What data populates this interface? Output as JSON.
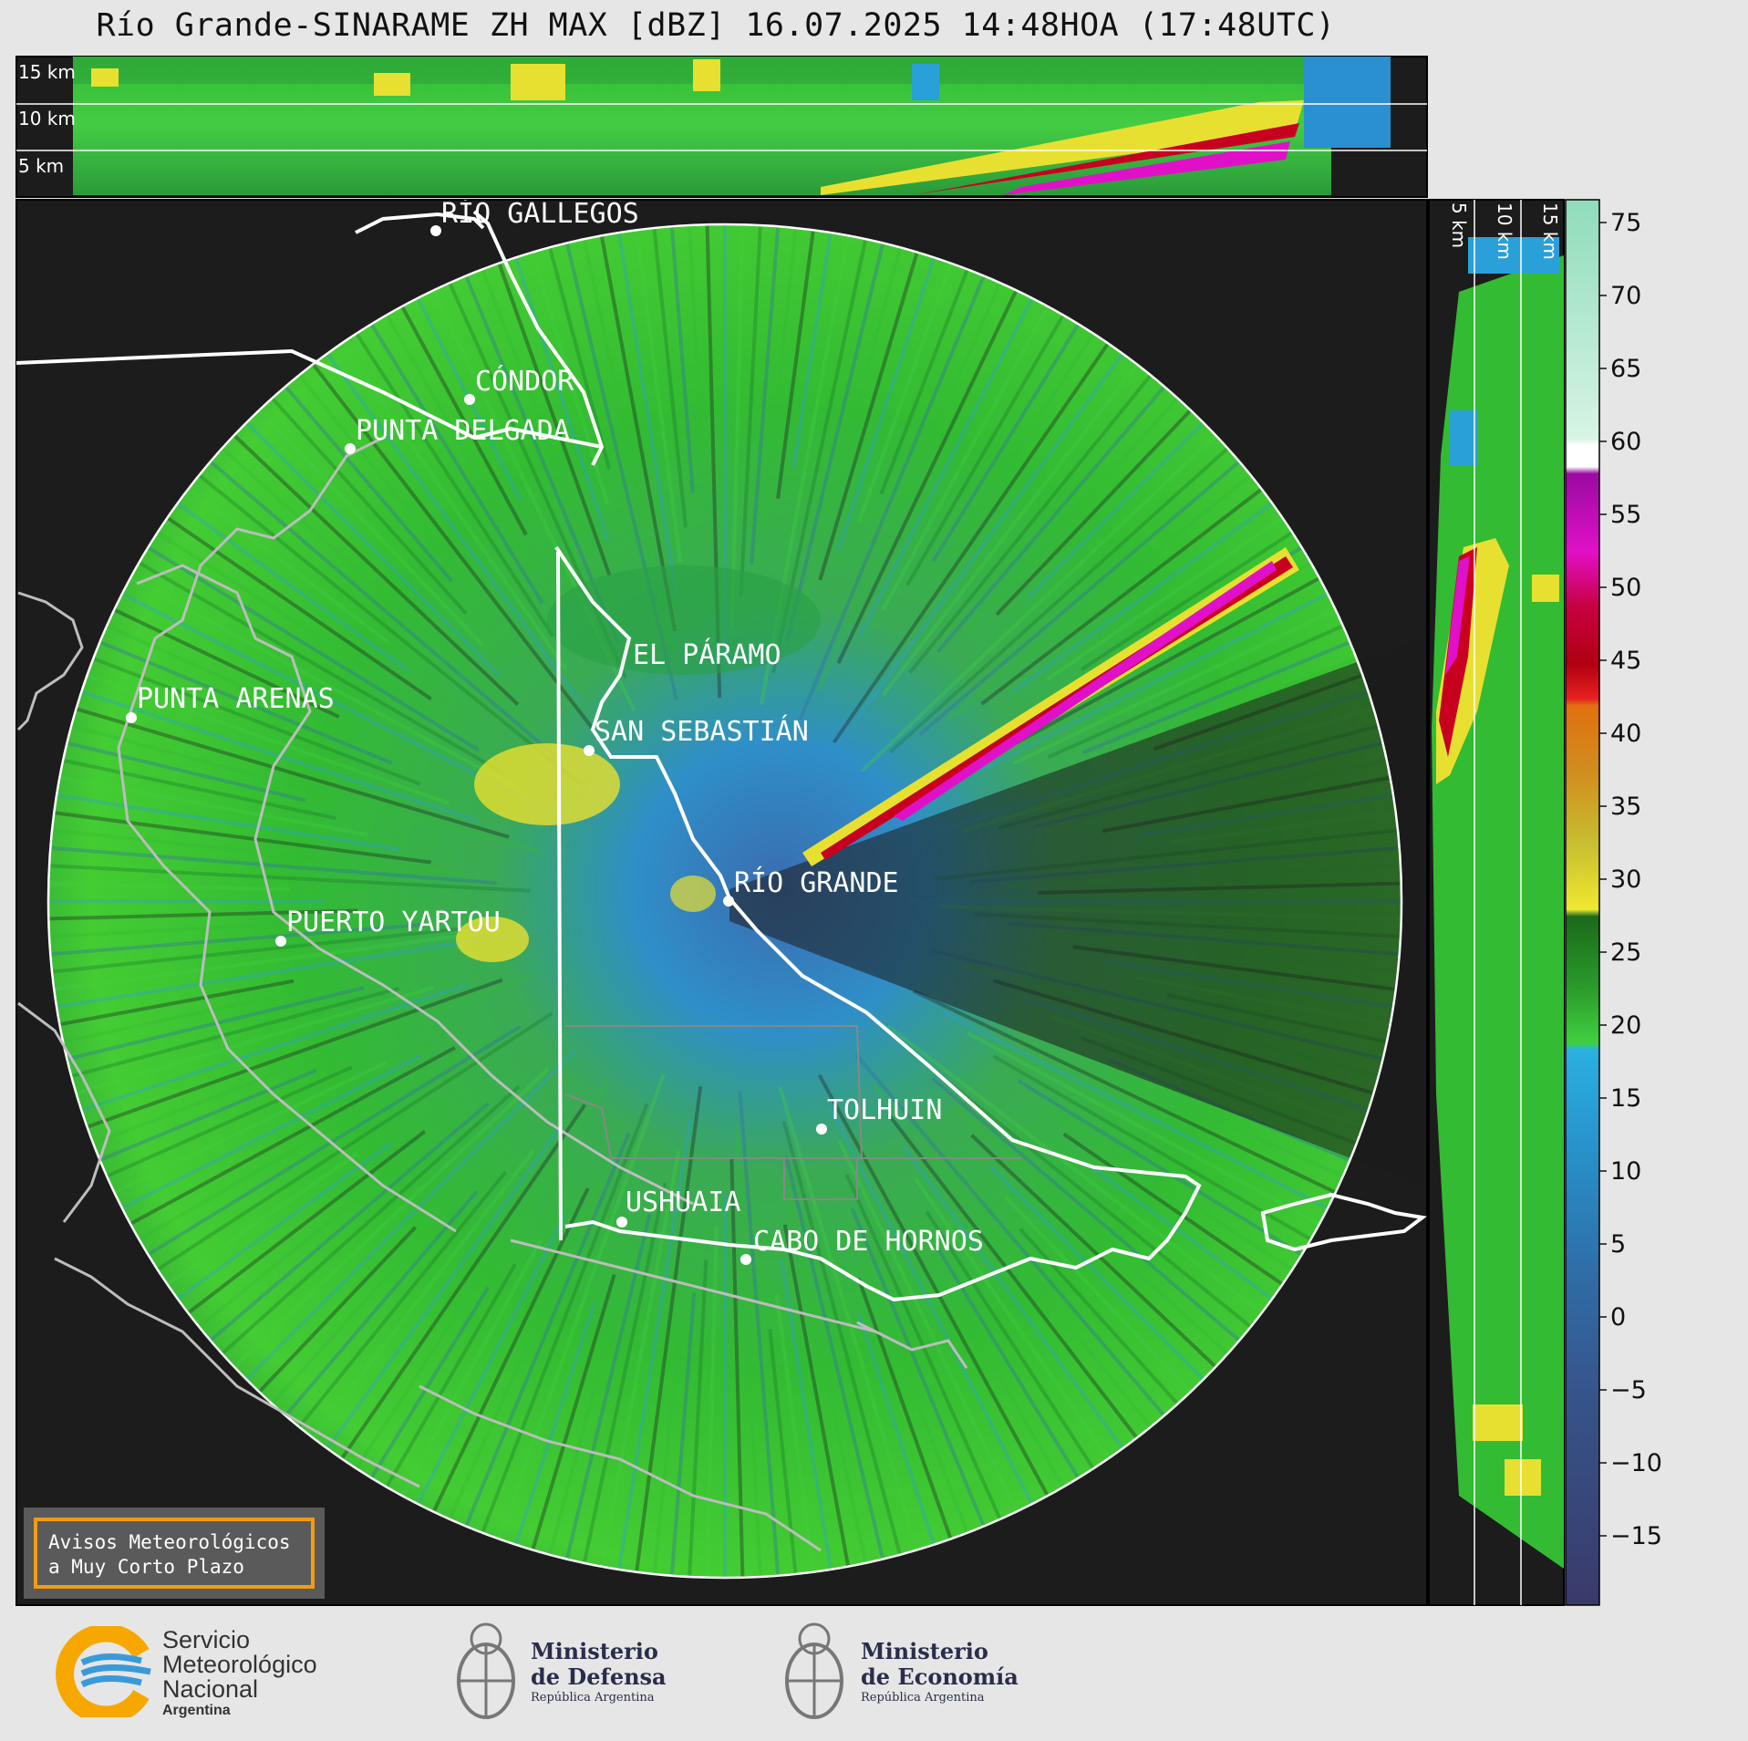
{
  "title": "Río Grande-SINARAME ZH MAX [dBZ] 16.07.2025 14:48HOA (17:48UTC)",
  "top_panel": {
    "km_labels": [
      "15 km",
      "10 km",
      "5 km"
    ]
  },
  "side_panel": {
    "km_labels": [
      "5 km",
      "10 km",
      "15 km"
    ]
  },
  "places": [
    {
      "name": "RÍO GALLEGOS"
    },
    {
      "name": "CÓNDOR"
    },
    {
      "name": "PUNTA DELGADA"
    },
    {
      "name": "PUNTA ARENAS"
    },
    {
      "name": "EL PÁRAMO"
    },
    {
      "name": "SAN SEBASTIÁN"
    },
    {
      "name": "RÍO GRANDE"
    },
    {
      "name": "PUERTO YARTOU"
    },
    {
      "name": "TOLHUIN"
    },
    {
      "name": "USHUAIA"
    },
    {
      "name": "CABO DE HORNOS"
    }
  ],
  "colorbar": {
    "unit": "dBZ",
    "ticks": [
      "75",
      "70",
      "65",
      "60",
      "55",
      "50",
      "45",
      "40",
      "35",
      "30",
      "25",
      "20",
      "15",
      "10",
      "5",
      "0",
      "−5",
      "−10",
      "−15"
    ],
    "colors": {
      "light_green": "#8fdcba",
      "white": "#ffffff",
      "magenta": "#e010c8",
      "red": "#c80020",
      "orange": "#e08010",
      "yellow": "#e8e030",
      "green": "#30c830",
      "blue": "#2aa0d8",
      "slate": "#3a4a80"
    }
  },
  "notice": {
    "line1": "Avisos Meteorológicos",
    "line2": "a Muy Corto Plazo"
  },
  "logos": {
    "smn": {
      "line1": "Servicio",
      "line2": "Meteorológico",
      "line3": "Nacional",
      "line4": "Argentina"
    },
    "defensa": {
      "line1": "Ministerio",
      "line2": "de Defensa",
      "line3": "República Argentina"
    },
    "economia": {
      "line1": "Ministerio",
      "line2": "de Economía",
      "line3": "República Argentina"
    }
  }
}
